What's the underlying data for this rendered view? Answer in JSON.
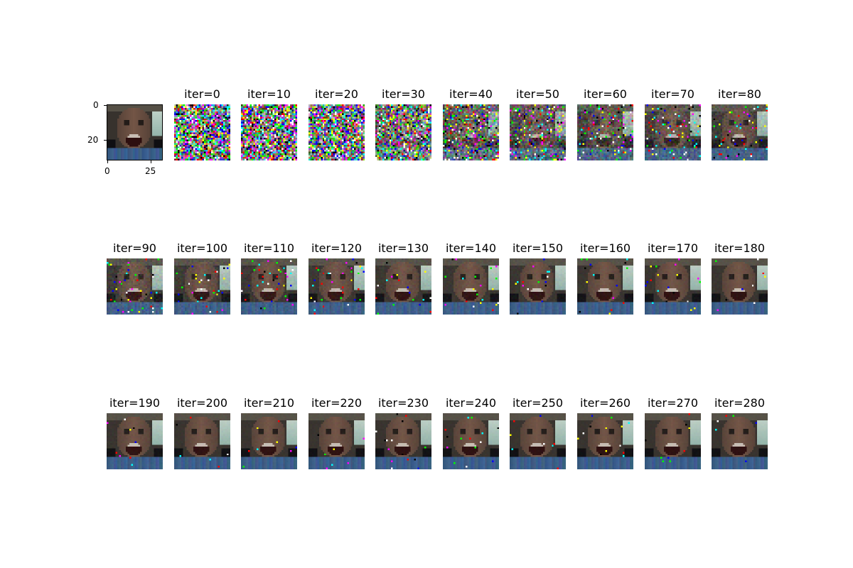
{
  "reference_panel": {
    "y_tick_labels": [
      "0",
      "20"
    ],
    "x_tick_labels": [
      "0",
      "25"
    ]
  },
  "panels": [
    {
      "title": "iter=0",
      "noise_level": 1.0
    },
    {
      "title": "iter=10",
      "noise_level": 0.97
    },
    {
      "title": "iter=20",
      "noise_level": 0.9
    },
    {
      "title": "iter=30",
      "noise_level": 0.72
    },
    {
      "title": "iter=40",
      "noise_level": 0.5
    },
    {
      "title": "iter=50",
      "noise_level": 0.38
    },
    {
      "title": "iter=60",
      "noise_level": 0.28
    },
    {
      "title": "iter=70",
      "noise_level": 0.2
    },
    {
      "title": "iter=80",
      "noise_level": 0.15
    },
    {
      "title": "iter=90",
      "noise_level": 0.12
    },
    {
      "title": "iter=100",
      "noise_level": 0.1
    },
    {
      "title": "iter=110",
      "noise_level": 0.085
    },
    {
      "title": "iter=120",
      "noise_level": 0.075
    },
    {
      "title": "iter=130",
      "noise_level": 0.065
    },
    {
      "title": "iter=140",
      "noise_level": 0.058
    },
    {
      "title": "iter=150",
      "noise_level": 0.052
    },
    {
      "title": "iter=160",
      "noise_level": 0.046
    },
    {
      "title": "iter=170",
      "noise_level": 0.042
    },
    {
      "title": "iter=180",
      "noise_level": 0.038
    },
    {
      "title": "iter=190",
      "noise_level": 0.035
    },
    {
      "title": "iter=200",
      "noise_level": 0.032
    },
    {
      "title": "iter=210",
      "noise_level": 0.03
    },
    {
      "title": "iter=220",
      "noise_level": 0.028
    },
    {
      "title": "iter=230",
      "noise_level": 0.026
    },
    {
      "title": "iter=240",
      "noise_level": 0.025
    },
    {
      "title": "iter=250",
      "noise_level": 0.024
    },
    {
      "title": "iter=260",
      "noise_level": 0.023
    },
    {
      "title": "iter=270",
      "noise_level": 0.022
    },
    {
      "title": "iter=280",
      "noise_level": 0.021
    }
  ],
  "colors": {
    "background": "#ffffff",
    "text": "#000000"
  }
}
